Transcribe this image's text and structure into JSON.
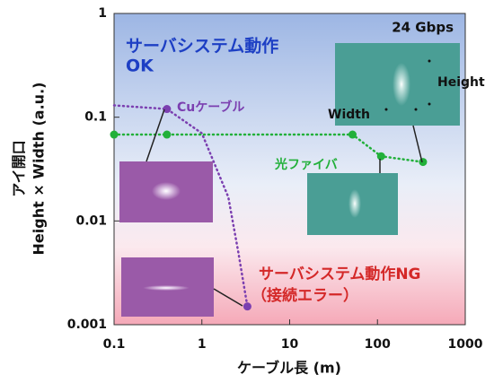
{
  "chart_data": {
    "type": "line",
    "xlabel": "ケーブル長 (m)",
    "ylabel": [
      "アイ開口",
      "Height × Width (a.u.)"
    ],
    "xscale": "log",
    "yscale": "log",
    "xlim": [
      0.1,
      1000
    ],
    "ylim": [
      0.001,
      1
    ],
    "xticks": [
      0.1,
      1,
      10,
      100,
      1000
    ],
    "yticks": [
      0.001,
      0.01,
      0.1,
      1
    ],
    "series": [
      {
        "name": "Cuケーブル",
        "color": "#7b3fb0",
        "x": [
          0.1,
          0.4,
          1,
          2,
          2.6,
          3.3
        ],
        "values": [
          0.13,
          0.12,
          0.07,
          0.017,
          0.005,
          0.0015
        ],
        "markers": [
          false,
          true,
          false,
          false,
          false,
          true
        ]
      },
      {
        "name": "光ファイバ",
        "color": "#22b03a",
        "x": [
          0.1,
          0.4,
          52,
          110,
          330
        ],
        "values": [
          0.068,
          0.068,
          0.068,
          0.042,
          0.037
        ],
        "markers": [
          true,
          true,
          true,
          true,
          true
        ]
      }
    ],
    "annotations": {
      "ok": [
        "サーバシステム動作",
        "OK"
      ],
      "rate": "24 Gbps",
      "height": "Height",
      "width": "Width",
      "ng": [
        "サーバシステム動作NG",
        "（接続エラー）"
      ]
    }
  }
}
